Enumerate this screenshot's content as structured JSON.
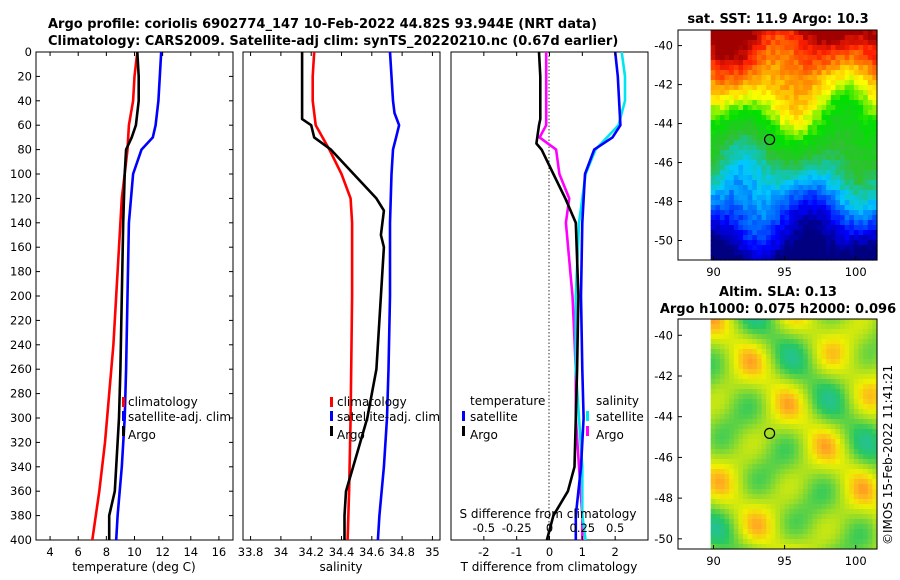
{
  "header": {
    "title_line1": "Argo profile: coriolis 6902774_147 10-Feb-2022 44.82S 93.944E (NRT data)",
    "title_line2": "Climatology: CARS2009. Satellite-adj clim: synTS_20220210.nc (0.67d earlier)"
  },
  "colors": {
    "climatology": "#ff0000",
    "satellite": "#0000ff",
    "argo": "#000000",
    "temp_diff_argo": "#ff00ff",
    "temp_diff_sat": "#00e5ee",
    "sal_diff_argo": "#000000",
    "sal_diff_sat": "#0000ff"
  },
  "chart_data": [
    {
      "type": "line",
      "name": "temperature",
      "xlabel": "temperature (deg C)",
      "ylabel": "",
      "xlim": [
        3,
        17
      ],
      "ylim": [
        400,
        0
      ],
      "xticks": [
        "4",
        "6",
        "8",
        "10",
        "12",
        "14",
        "16"
      ],
      "xtick_values": [
        4,
        6,
        8,
        10,
        12,
        14,
        16
      ],
      "yticks": [
        "0",
        "20",
        "40",
        "60",
        "80",
        "100",
        "120",
        "140",
        "160",
        "180",
        "200",
        "220",
        "240",
        "260",
        "280",
        "300",
        "320",
        "340",
        "360",
        "380",
        "400"
      ],
      "legend": [
        "climatology",
        "satellite-adj. clim",
        "Argo"
      ],
      "series": [
        {
          "name": "climatology",
          "color": "#ff0000",
          "depth": [
            0,
            20,
            40,
            60,
            80,
            100,
            120,
            140,
            160,
            180,
            200,
            240,
            280,
            320,
            360,
            400
          ],
          "values": [
            10.2,
            10.0,
            9.9,
            9.6,
            9.5,
            9.3,
            9.1,
            9.0,
            8.9,
            8.8,
            8.7,
            8.5,
            8.2,
            7.9,
            7.5,
            7.0
          ]
        },
        {
          "name": "satellite-adj. clim",
          "color": "#0000ff",
          "depth": [
            0,
            20,
            40,
            60,
            70,
            80,
            100,
            140,
            200,
            260,
            300,
            340,
            380,
            400
          ],
          "values": [
            11.9,
            11.8,
            11.7,
            11.5,
            11.3,
            10.5,
            9.9,
            9.6,
            9.5,
            9.4,
            9.3,
            9.1,
            8.8,
            8.7
          ]
        },
        {
          "name": "Argo",
          "color": "#000000",
          "depth": [
            0,
            20,
            40,
            60,
            70,
            80,
            100,
            140,
            200,
            260,
            300,
            360,
            380,
            400
          ],
          "values": [
            10.2,
            10.3,
            10.3,
            10.1,
            9.8,
            9.4,
            9.3,
            9.2,
            9.1,
            9.0,
            8.9,
            8.6,
            8.2,
            8.2
          ]
        }
      ]
    },
    {
      "type": "line",
      "name": "salinity",
      "xlabel": "salinity",
      "ylabel": "",
      "xlim": [
        33.75,
        35.05
      ],
      "ylim": [
        400,
        0
      ],
      "xticks": [
        "33.8",
        "34",
        "34.2",
        "34.4",
        "34.6",
        "34.8",
        "35"
      ],
      "xtick_values": [
        33.8,
        34.0,
        34.2,
        34.4,
        34.6,
        34.8,
        35.0
      ],
      "legend": [
        "climatology",
        "satellite-adj. clim",
        "Argo"
      ],
      "series": [
        {
          "name": "climatology",
          "color": "#ff0000",
          "depth": [
            0,
            20,
            40,
            60,
            80,
            100,
            120,
            140,
            200,
            300,
            360,
            400
          ],
          "values": [
            34.22,
            34.21,
            34.21,
            34.23,
            34.32,
            34.4,
            34.46,
            34.47,
            34.47,
            34.46,
            34.45,
            34.44
          ],
          "x_extra": []
        },
        {
          "name": "satellite-adj. clim",
          "color": "#0000ff",
          "depth": [
            0,
            20,
            40,
            50,
            60,
            70,
            80,
            100,
            140,
            200,
            260,
            300,
            340,
            380,
            400
          ],
          "values": [
            34.72,
            34.73,
            34.74,
            34.75,
            34.78,
            34.76,
            34.74,
            34.73,
            34.72,
            34.72,
            34.71,
            34.7,
            34.68,
            34.65,
            34.64
          ],
          "x_extra": []
        },
        {
          "name": "Argo",
          "color": "#000000",
          "depth": [
            0,
            20,
            40,
            55,
            60,
            70,
            80,
            100,
            120,
            130,
            140,
            150,
            160,
            200,
            260,
            300,
            330,
            360,
            380,
            400
          ],
          "values": [
            34.14,
            34.14,
            34.14,
            34.14,
            34.2,
            34.22,
            34.33,
            34.48,
            34.63,
            34.68,
            34.67,
            34.66,
            34.68,
            34.66,
            34.63,
            34.57,
            34.5,
            34.43,
            34.42,
            34.42
          ],
          "x_extra": []
        }
      ]
    },
    {
      "type": "line",
      "name": "differences",
      "xlabel": "T difference from climatology",
      "xlabel_top": "S difference from climatology",
      "xlim": [
        -3,
        3
      ],
      "ylim": [
        400,
        0
      ],
      "xticks": [
        "-2",
        "-1",
        "0",
        "1",
        "2"
      ],
      "xtick_values": [
        -2,
        -1,
        0,
        1,
        2
      ],
      "top_ticks": [
        "-0.5",
        "-0.25",
        "0",
        "0.25",
        "0.5"
      ],
      "top_tick_values": [
        -0.5,
        -0.25,
        0,
        0.25,
        0.5
      ],
      "legend_left": [
        "temperature",
        "satellite",
        "Argo"
      ],
      "legend_right": [
        "salinity",
        "satellite",
        "Argo"
      ],
      "series": [
        {
          "name": "T diff Argo",
          "color": "#ff00ff",
          "axis": "T",
          "depth": [
            0,
            20,
            40,
            60,
            70,
            80,
            100,
            120,
            140,
            200,
            260,
            300,
            340,
            380,
            400
          ],
          "values": [
            -0.1,
            -0.1,
            -0.1,
            -0.1,
            -0.3,
            0.2,
            0.3,
            0.6,
            0.5,
            0.7,
            0.8,
            0.8,
            0.9,
            1.0,
            1.0
          ]
        },
        {
          "name": "T diff satellite",
          "color": "#00e5ee",
          "axis": "T",
          "depth": [
            0,
            20,
            40,
            60,
            80,
            100,
            140,
            200,
            260,
            300,
            340,
            380,
            400
          ],
          "values": [
            2.2,
            2.3,
            2.3,
            2.1,
            1.4,
            1.1,
            0.9,
            0.8,
            0.8,
            0.9,
            1.0,
            1.0,
            1.1
          ]
        },
        {
          "name": "S diff Argo",
          "color": "#000000",
          "axis": "S",
          "depth": [
            0,
            20,
            40,
            55,
            60,
            75,
            80,
            100,
            120,
            140,
            200,
            260,
            300,
            340,
            360,
            380,
            400
          ],
          "values": [
            -0.08,
            -0.07,
            -0.07,
            -0.07,
            -0.08,
            -0.1,
            -0.06,
            0.03,
            0.12,
            0.2,
            0.22,
            0.21,
            0.2,
            0.19,
            0.14,
            0.03,
            -0.02
          ]
        },
        {
          "name": "S diff satellite",
          "color": "#0000ff",
          "axis": "S",
          "depth": [
            0,
            20,
            40,
            60,
            70,
            80,
            100,
            140,
            200,
            260,
            300,
            340,
            380,
            400
          ],
          "values": [
            0.5,
            0.52,
            0.53,
            0.54,
            0.48,
            0.34,
            0.27,
            0.25,
            0.24,
            0.25,
            0.26,
            0.24,
            0.2,
            0.2
          ]
        }
      ]
    },
    {
      "type": "heatmap",
      "name": "sst_map",
      "title": "sat. SST: 11.9 Argo: 10.3",
      "xticks": [
        "90",
        "95",
        "100"
      ],
      "xtick_values": [
        90,
        95,
        100
      ],
      "yticks": [
        "-40",
        "-42",
        "-44",
        "-46",
        "-48",
        "-50"
      ],
      "ytick_values": [
        -40,
        -42,
        -44,
        -46,
        -48,
        -50
      ],
      "xlim": [
        87.5,
        101.5
      ],
      "ylim": [
        -51,
        -39.2
      ],
      "argo_position": [
        93.944,
        -44.82
      ]
    },
    {
      "type": "heatmap",
      "name": "sla_map",
      "title_line1": "Altim. SLA: 0.13",
      "title_line2": "Argo h1000: 0.075 h2000: 0.096",
      "xticks": [
        "90",
        "95",
        "100"
      ],
      "xtick_values": [
        90,
        95,
        100
      ],
      "yticks": [
        "-40",
        "-42",
        "-44",
        "-46",
        "-48",
        "-50"
      ],
      "ytick_values": [
        -40,
        -42,
        -44,
        -46,
        -48,
        -50
      ],
      "xlim": [
        87.5,
        101.5
      ],
      "ylim": [
        -50.5,
        -39.2
      ],
      "argo_position": [
        93.944,
        -44.82
      ]
    }
  ],
  "footer": {
    "stamp": "©IMOS 15-Feb-2022 11:41:21"
  }
}
